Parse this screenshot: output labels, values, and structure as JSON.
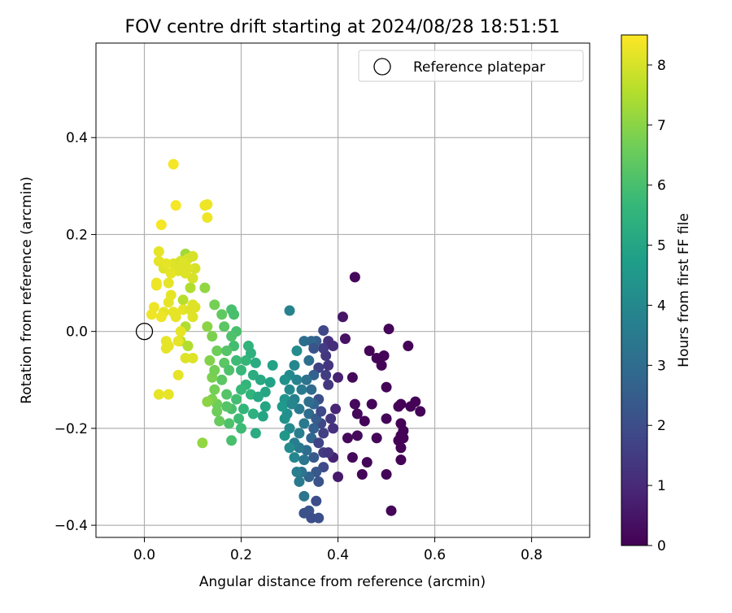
{
  "chart_data": {
    "type": "scatter",
    "title": "FOV centre drift starting at 2024/08/28 18:51:51",
    "xlabel": "Angular distance from reference (arcmin)",
    "ylabel": "Rotation from reference (arcmin)",
    "xlim": [
      -0.1,
      0.92
    ],
    "ylim": [
      -0.425,
      0.595
    ],
    "xticks": [
      0.0,
      0.2,
      0.4,
      0.6,
      0.8
    ],
    "xtick_labels": [
      "0.0",
      "0.2",
      "0.4",
      "0.6",
      "0.8"
    ],
    "yticks": [
      -0.4,
      -0.2,
      0.0,
      0.2,
      0.4
    ],
    "ytick_labels": [
      "−0.4",
      "−0.2",
      "0.0",
      "0.2",
      "0.4"
    ],
    "grid": true,
    "legend": {
      "position": "top-right",
      "entries": [
        "Reference platepar"
      ]
    },
    "reference_point": {
      "x": 0.0,
      "y": 0.0
    },
    "colorbar": {
      "label": "Hours from first FF file",
      "colormap": "viridis",
      "range": [
        0,
        8.5
      ],
      "ticks": [
        0,
        1,
        2,
        3,
        4,
        5,
        6,
        7,
        8
      ],
      "tick_labels": [
        "0",
        "1",
        "2",
        "3",
        "4",
        "5",
        "6",
        "7",
        "8"
      ]
    },
    "points": [
      {
        "x": 0.435,
        "y": 0.112,
        "c": 0.2
      },
      {
        "x": 0.505,
        "y": 0.005,
        "c": 0.1
      },
      {
        "x": 0.545,
        "y": -0.03,
        "c": 0.05
      },
      {
        "x": 0.465,
        "y": -0.04,
        "c": 0.1
      },
      {
        "x": 0.48,
        "y": -0.055,
        "c": 0.1
      },
      {
        "x": 0.49,
        "y": -0.07,
        "c": 0.1
      },
      {
        "x": 0.495,
        "y": -0.05,
        "c": 0.1
      },
      {
        "x": 0.43,
        "y": -0.095,
        "c": 0.2
      },
      {
        "x": 0.5,
        "y": -0.115,
        "c": 0.1
      },
      {
        "x": 0.47,
        "y": -0.15,
        "c": 0.1
      },
      {
        "x": 0.435,
        "y": -0.15,
        "c": 0.2
      },
      {
        "x": 0.44,
        "y": -0.17,
        "c": 0.2
      },
      {
        "x": 0.5,
        "y": -0.18,
        "c": 0.1
      },
      {
        "x": 0.455,
        "y": -0.185,
        "c": 0.1
      },
      {
        "x": 0.53,
        "y": -0.15,
        "c": 0.05
      },
      {
        "x": 0.525,
        "y": -0.155,
        "c": 0.05
      },
      {
        "x": 0.56,
        "y": -0.145,
        "c": 0.05
      },
      {
        "x": 0.55,
        "y": -0.155,
        "c": 0.05
      },
      {
        "x": 0.57,
        "y": -0.165,
        "c": 0.05
      },
      {
        "x": 0.53,
        "y": -0.19,
        "c": 0.05
      },
      {
        "x": 0.535,
        "y": -0.205,
        "c": 0.05
      },
      {
        "x": 0.53,
        "y": -0.215,
        "c": 0.05
      },
      {
        "x": 0.525,
        "y": -0.225,
        "c": 0.05
      },
      {
        "x": 0.53,
        "y": -0.24,
        "c": 0.05
      },
      {
        "x": 0.535,
        "y": -0.22,
        "c": 0.05
      },
      {
        "x": 0.42,
        "y": -0.22,
        "c": 0.2
      },
      {
        "x": 0.44,
        "y": -0.215,
        "c": 0.2
      },
      {
        "x": 0.48,
        "y": -0.22,
        "c": 0.1
      },
      {
        "x": 0.43,
        "y": -0.26,
        "c": 0.2
      },
      {
        "x": 0.46,
        "y": -0.27,
        "c": 0.1
      },
      {
        "x": 0.45,
        "y": -0.295,
        "c": 0.1
      },
      {
        "x": 0.5,
        "y": -0.295,
        "c": 0.1
      },
      {
        "x": 0.53,
        "y": -0.265,
        "c": 0.05
      },
      {
        "x": 0.51,
        "y": -0.37,
        "c": 0.1
      },
      {
        "x": 0.41,
        "y": 0.03,
        "c": 0.5
      },
      {
        "x": 0.415,
        "y": -0.015,
        "c": 0.4
      },
      {
        "x": 0.4,
        "y": -0.095,
        "c": 0.8
      },
      {
        "x": 0.395,
        "y": -0.16,
        "c": 0.9
      },
      {
        "x": 0.4,
        "y": -0.3,
        "c": 0.6
      },
      {
        "x": 0.39,
        "y": -0.26,
        "c": 0.8
      },
      {
        "x": 0.38,
        "y": -0.02,
        "c": 1.2
      },
      {
        "x": 0.375,
        "y": -0.05,
        "c": 1.4
      },
      {
        "x": 0.37,
        "y": -0.035,
        "c": 1.5
      },
      {
        "x": 0.37,
        "y": 0.002,
        "c": 1.8
      },
      {
        "x": 0.36,
        "y": -0.075,
        "c": 1.6
      },
      {
        "x": 0.375,
        "y": -0.09,
        "c": 1.5
      },
      {
        "x": 0.38,
        "y": -0.11,
        "c": 1.4
      },
      {
        "x": 0.385,
        "y": -0.18,
        "c": 1.3
      },
      {
        "x": 0.39,
        "y": -0.2,
        "c": 1.2
      },
      {
        "x": 0.37,
        "y": -0.21,
        "c": 1.6
      },
      {
        "x": 0.365,
        "y": -0.19,
        "c": 1.8
      },
      {
        "x": 0.36,
        "y": -0.14,
        "c": 2.0
      },
      {
        "x": 0.37,
        "y": -0.25,
        "c": 1.5
      },
      {
        "x": 0.38,
        "y": -0.25,
        "c": 1.3
      },
      {
        "x": 0.37,
        "y": -0.28,
        "c": 1.9
      },
      {
        "x": 0.36,
        "y": -0.31,
        "c": 2.2
      },
      {
        "x": 0.355,
        "y": -0.35,
        "c": 2.0
      },
      {
        "x": 0.34,
        "y": -0.37,
        "c": 2.2
      },
      {
        "x": 0.345,
        "y": -0.385,
        "c": 2.0
      },
      {
        "x": 0.36,
        "y": -0.385,
        "c": 2.0
      },
      {
        "x": 0.33,
        "y": -0.375,
        "c": 2.1
      },
      {
        "x": 0.33,
        "y": -0.34,
        "c": 3.3
      },
      {
        "x": 0.355,
        "y": -0.02,
        "c": 2.5
      },
      {
        "x": 0.345,
        "y": -0.02,
        "c": 2.8
      },
      {
        "x": 0.33,
        "y": -0.02,
        "c": 3.0
      },
      {
        "x": 0.34,
        "y": -0.06,
        "c": 3.1
      },
      {
        "x": 0.35,
        "y": -0.09,
        "c": 2.6
      },
      {
        "x": 0.335,
        "y": -0.1,
        "c": 3.2
      },
      {
        "x": 0.345,
        "y": -0.12,
        "c": 2.9
      },
      {
        "x": 0.35,
        "y": -0.15,
        "c": 2.7
      },
      {
        "x": 0.34,
        "y": -0.17,
        "c": 3.0
      },
      {
        "x": 0.355,
        "y": -0.18,
        "c": 2.5
      },
      {
        "x": 0.35,
        "y": -0.2,
        "c": 2.6
      },
      {
        "x": 0.345,
        "y": -0.22,
        "c": 2.8
      },
      {
        "x": 0.335,
        "y": -0.245,
        "c": 3.0
      },
      {
        "x": 0.35,
        "y": -0.26,
        "c": 2.4
      },
      {
        "x": 0.355,
        "y": -0.29,
        "c": 2.3
      },
      {
        "x": 0.34,
        "y": -0.3,
        "c": 2.7
      },
      {
        "x": 0.325,
        "y": -0.29,
        "c": 3.2
      },
      {
        "x": 0.33,
        "y": -0.265,
        "c": 3.3
      },
      {
        "x": 0.32,
        "y": -0.24,
        "c": 3.5
      },
      {
        "x": 0.31,
        "y": -0.23,
        "c": 3.6
      },
      {
        "x": 0.32,
        "y": -0.21,
        "c": 3.6
      },
      {
        "x": 0.33,
        "y": -0.19,
        "c": 3.4
      },
      {
        "x": 0.32,
        "y": -0.16,
        "c": 3.5
      },
      {
        "x": 0.31,
        "y": -0.14,
        "c": 3.7
      },
      {
        "x": 0.325,
        "y": -0.12,
        "c": 3.5
      },
      {
        "x": 0.315,
        "y": -0.1,
        "c": 3.8
      },
      {
        "x": 0.3,
        "y": -0.09,
        "c": 4.0
      },
      {
        "x": 0.31,
        "y": -0.07,
        "c": 3.9
      },
      {
        "x": 0.3,
        "y": 0.043,
        "c": 3.8
      },
      {
        "x": 0.315,
        "y": -0.04,
        "c": 4.1
      },
      {
        "x": 0.3,
        "y": -0.12,
        "c": 4.0
      },
      {
        "x": 0.295,
        "y": -0.17,
        "c": 4.2
      },
      {
        "x": 0.3,
        "y": -0.2,
        "c": 4.0
      },
      {
        "x": 0.3,
        "y": -0.24,
        "c": 4.1
      },
      {
        "x": 0.31,
        "y": -0.26,
        "c": 3.9
      },
      {
        "x": 0.315,
        "y": -0.29,
        "c": 3.6
      },
      {
        "x": 0.32,
        "y": -0.31,
        "c": 3.5
      },
      {
        "x": 0.29,
        "y": -0.18,
        "c": 4.3
      },
      {
        "x": 0.29,
        "y": -0.1,
        "c": 4.3
      },
      {
        "x": 0.29,
        "y": -0.14,
        "c": 4.4
      },
      {
        "x": 0.285,
        "y": -0.155,
        "c": 4.6
      },
      {
        "x": 0.29,
        "y": -0.215,
        "c": 4.5
      },
      {
        "x": 0.305,
        "y": -0.15,
        "c": 3.9
      },
      {
        "x": 0.36,
        "y": -0.23,
        "c": 1.7
      },
      {
        "x": 0.365,
        "y": -0.165,
        "c": 1.9
      },
      {
        "x": 0.38,
        "y": -0.07,
        "c": 1.3
      },
      {
        "x": 0.39,
        "y": -0.03,
        "c": 1.1
      },
      {
        "x": 0.35,
        "y": -0.035,
        "c": 2.2
      },
      {
        "x": 0.34,
        "y": -0.145,
        "c": 3.1
      },
      {
        "x": 0.265,
        "y": -0.07,
        "c": 4.9
      },
      {
        "x": 0.23,
        "y": -0.065,
        "c": 5.2
      },
      {
        "x": 0.225,
        "y": -0.09,
        "c": 5.3
      },
      {
        "x": 0.24,
        "y": -0.1,
        "c": 5.1
      },
      {
        "x": 0.25,
        "y": -0.125,
        "c": 5.0
      },
      {
        "x": 0.245,
        "y": -0.175,
        "c": 5.0
      },
      {
        "x": 0.23,
        "y": -0.21,
        "c": 5.2
      },
      {
        "x": 0.225,
        "y": -0.17,
        "c": 5.4
      },
      {
        "x": 0.22,
        "y": -0.13,
        "c": 5.5
      },
      {
        "x": 0.21,
        "y": -0.11,
        "c": 5.6
      },
      {
        "x": 0.2,
        "y": -0.08,
        "c": 5.7
      },
      {
        "x": 0.21,
        "y": -0.06,
        "c": 5.6
      },
      {
        "x": 0.19,
        "y": -0.06,
        "c": 5.8
      },
      {
        "x": 0.185,
        "y": -0.03,
        "c": 5.9
      },
      {
        "x": 0.18,
        "y": 0.045,
        "c": 6.0
      },
      {
        "x": 0.185,
        "y": 0.035,
        "c": 6.0
      },
      {
        "x": 0.19,
        "y": 0.0,
        "c": 6.0
      },
      {
        "x": 0.18,
        "y": -0.01,
        "c": 6.1
      },
      {
        "x": 0.2,
        "y": -0.12,
        "c": 5.7
      },
      {
        "x": 0.19,
        "y": -0.14,
        "c": 5.9
      },
      {
        "x": 0.2,
        "y": -0.2,
        "c": 5.8
      },
      {
        "x": 0.195,
        "y": -0.18,
        "c": 5.8
      },
      {
        "x": 0.18,
        "y": -0.16,
        "c": 6.0
      },
      {
        "x": 0.17,
        "y": -0.13,
        "c": 6.2
      },
      {
        "x": 0.16,
        "y": -0.1,
        "c": 6.3
      },
      {
        "x": 0.165,
        "y": -0.065,
        "c": 6.3
      },
      {
        "x": 0.175,
        "y": -0.08,
        "c": 6.1
      },
      {
        "x": 0.18,
        "y": -0.225,
        "c": 6.0
      },
      {
        "x": 0.175,
        "y": -0.19,
        "c": 6.1
      },
      {
        "x": 0.17,
        "y": -0.155,
        "c": 6.2
      },
      {
        "x": 0.155,
        "y": -0.185,
        "c": 6.5
      },
      {
        "x": 0.15,
        "y": -0.15,
        "c": 6.6
      },
      {
        "x": 0.14,
        "y": -0.14,
        "c": 6.8
      },
      {
        "x": 0.145,
        "y": -0.12,
        "c": 6.7
      },
      {
        "x": 0.14,
        "y": -0.095,
        "c": 6.8
      },
      {
        "x": 0.135,
        "y": -0.06,
        "c": 6.9
      },
      {
        "x": 0.145,
        "y": -0.08,
        "c": 6.7
      },
      {
        "x": 0.15,
        "y": -0.04,
        "c": 6.6
      },
      {
        "x": 0.14,
        "y": -0.01,
        "c": 6.8
      },
      {
        "x": 0.145,
        "y": 0.055,
        "c": 6.7
      },
      {
        "x": 0.16,
        "y": 0.035,
        "c": 6.4
      },
      {
        "x": 0.165,
        "y": 0.01,
        "c": 6.3
      },
      {
        "x": 0.17,
        "y": -0.04,
        "c": 6.2
      },
      {
        "x": 0.12,
        "y": -0.23,
        "c": 7.1
      },
      {
        "x": 0.13,
        "y": -0.145,
        "c": 7.0
      },
      {
        "x": 0.15,
        "y": -0.165,
        "c": 6.6
      },
      {
        "x": 0.125,
        "y": 0.09,
        "c": 7.1
      },
      {
        "x": 0.13,
        "y": 0.01,
        "c": 7.0
      },
      {
        "x": 0.215,
        "y": -0.03,
        "c": 5.5
      },
      {
        "x": 0.22,
        "y": -0.045,
        "c": 5.4
      },
      {
        "x": 0.235,
        "y": -0.135,
        "c": 5.1
      },
      {
        "x": 0.26,
        "y": -0.105,
        "c": 4.9
      },
      {
        "x": 0.25,
        "y": -0.155,
        "c": 5.0
      },
      {
        "x": 0.205,
        "y": -0.16,
        "c": 5.6
      },
      {
        "x": 0.085,
        "y": 0.16,
        "c": 7.3
      },
      {
        "x": 0.095,
        "y": 0.09,
        "c": 7.5
      },
      {
        "x": 0.08,
        "y": 0.065,
        "c": 7.6
      },
      {
        "x": 0.085,
        "y": 0.01,
        "c": 7.5
      },
      {
        "x": 0.075,
        "y": -0.02,
        "c": 7.7
      },
      {
        "x": 0.09,
        "y": -0.03,
        "c": 7.5
      },
      {
        "x": 0.06,
        "y": 0.345,
        "c": 8.4
      },
      {
        "x": 0.065,
        "y": 0.26,
        "c": 8.4
      },
      {
        "x": 0.035,
        "y": 0.22,
        "c": 8.4
      },
      {
        "x": 0.125,
        "y": 0.26,
        "c": 8.3
      },
      {
        "x": 0.13,
        "y": 0.262,
        "c": 8.3
      },
      {
        "x": 0.13,
        "y": 0.235,
        "c": 8.3
      },
      {
        "x": 0.03,
        "y": 0.165,
        "c": 8.2
      },
      {
        "x": 0.03,
        "y": 0.145,
        "c": 8.2
      },
      {
        "x": 0.04,
        "y": 0.13,
        "c": 8.1
      },
      {
        "x": 0.06,
        "y": 0.14,
        "c": 8.1
      },
      {
        "x": 0.075,
        "y": 0.145,
        "c": 8.0
      },
      {
        "x": 0.09,
        "y": 0.15,
        "c": 8.0
      },
      {
        "x": 0.1,
        "y": 0.155,
        "c": 8.0
      },
      {
        "x": 0.105,
        "y": 0.13,
        "c": 8.0
      },
      {
        "x": 0.1,
        "y": 0.11,
        "c": 8.0
      },
      {
        "x": 0.085,
        "y": 0.12,
        "c": 8.1
      },
      {
        "x": 0.07,
        "y": 0.125,
        "c": 8.1
      },
      {
        "x": 0.055,
        "y": 0.12,
        "c": 8.2
      },
      {
        "x": 0.045,
        "y": 0.14,
        "c": 8.2
      },
      {
        "x": 0.08,
        "y": 0.14,
        "c": 8.1
      },
      {
        "x": 0.09,
        "y": 0.13,
        "c": 8.1
      },
      {
        "x": 0.025,
        "y": 0.1,
        "c": 8.3
      },
      {
        "x": 0.025,
        "y": 0.095,
        "c": 8.3
      },
      {
        "x": 0.05,
        "y": 0.1,
        "c": 8.2
      },
      {
        "x": 0.055,
        "y": 0.075,
        "c": 8.2
      },
      {
        "x": 0.05,
        "y": 0.06,
        "c": 8.2
      },
      {
        "x": 0.04,
        "y": 0.04,
        "c": 8.2
      },
      {
        "x": 0.02,
        "y": 0.05,
        "c": 8.3
      },
      {
        "x": 0.015,
        "y": 0.035,
        "c": 8.3
      },
      {
        "x": 0.035,
        "y": 0.03,
        "c": 8.3
      },
      {
        "x": 0.06,
        "y": 0.04,
        "c": 8.2
      },
      {
        "x": 0.065,
        "y": 0.03,
        "c": 8.2
      },
      {
        "x": 0.08,
        "y": 0.045,
        "c": 8.2
      },
      {
        "x": 0.095,
        "y": 0.045,
        "c": 8.1
      },
      {
        "x": 0.1,
        "y": 0.055,
        "c": 8.1
      },
      {
        "x": 0.105,
        "y": 0.05,
        "c": 8.1
      },
      {
        "x": 0.1,
        "y": 0.03,
        "c": 8.1
      },
      {
        "x": 0.075,
        "y": 0.0,
        "c": 8.2
      },
      {
        "x": 0.045,
        "y": -0.02,
        "c": 8.2
      },
      {
        "x": 0.045,
        "y": -0.035,
        "c": 8.2
      },
      {
        "x": 0.05,
        "y": -0.03,
        "c": 8.2
      },
      {
        "x": 0.07,
        "y": -0.02,
        "c": 8.2
      },
      {
        "x": 0.085,
        "y": -0.055,
        "c": 8.1
      },
      {
        "x": 0.1,
        "y": -0.055,
        "c": 8.1
      },
      {
        "x": 0.07,
        "y": -0.09,
        "c": 8.2
      },
      {
        "x": 0.05,
        "y": -0.13,
        "c": 8.2
      },
      {
        "x": 0.03,
        "y": -0.13,
        "c": 8.2
      }
    ]
  }
}
